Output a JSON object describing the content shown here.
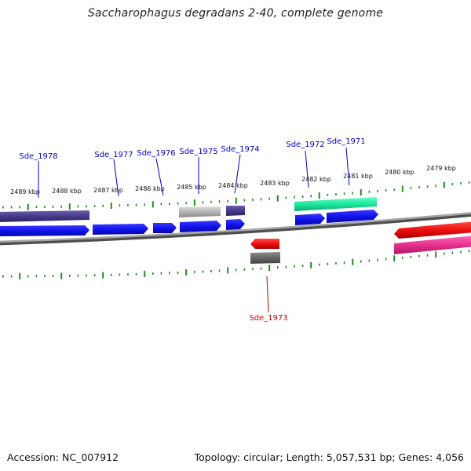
{
  "title": "Saccharophagus degradans 2-40, complete genome",
  "footer": {
    "accession": "Accession: NC_007912",
    "summary": "Topology: circular; Length: 5,057,531 bp; Genes: 4,056"
  },
  "colors": {
    "axis": "#808080",
    "ticks": "#228b22",
    "forward_label": "#0000cc",
    "reverse_label": "#cc0000",
    "cds_blue": "#1515f0",
    "gene_navy": "#4a3f8c",
    "gene_grey": "#b8b8b8",
    "gene_dark_grey": "#6a6a6a",
    "gene_teal": "#20e8a0",
    "cds_red": "#ee1111",
    "gene_pink": "#ee3399"
  },
  "ruler": {
    "labels": [
      "2489 kbp",
      "2488 kbp",
      "2487 kbp",
      "2486 kbp",
      "2485 kbp",
      "2484 kbp",
      "2483 kbp",
      "2482 kbp",
      "2481 kbp",
      "2480 kbp",
      "2479 kbp"
    ]
  },
  "genes": [
    {
      "id": "Sde_1978",
      "strand": "forward"
    },
    {
      "id": "Sde_1977",
      "strand": "forward"
    },
    {
      "id": "Sde_1976",
      "strand": "forward"
    },
    {
      "id": "Sde_1975",
      "strand": "forward"
    },
    {
      "id": "Sde_1974",
      "strand": "forward"
    },
    {
      "id": "Sde_1972",
      "strand": "forward"
    },
    {
      "id": "Sde_1971",
      "strand": "forward"
    },
    {
      "id": "Sde_1973",
      "strand": "reverse"
    }
  ]
}
